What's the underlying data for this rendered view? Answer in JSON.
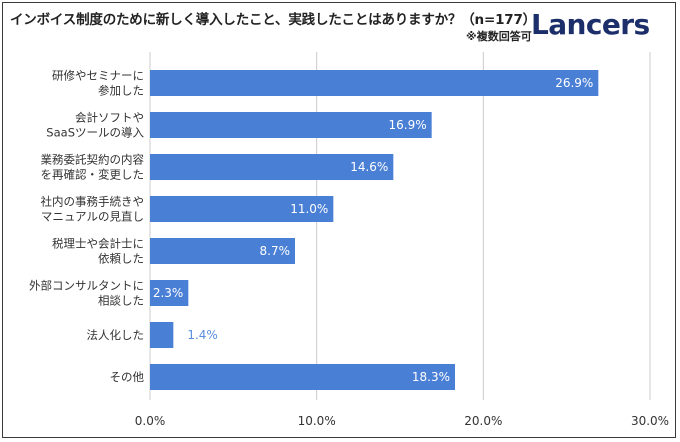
{
  "header": {
    "title": "インボイス制度のために新しく導入したこと、実践したことはありますか？（n=177）",
    "note": "※複数回答可",
    "logo": "Lancers"
  },
  "colors": {
    "bar": "#4a7fd6",
    "label_inside": "#ffffff",
    "label_outside": "#5a8fe0",
    "grid": "#cccccc",
    "text": "#333333"
  },
  "chart_data": {
    "type": "bar",
    "orientation": "horizontal",
    "title": "インボイス制度のために新しく導入したこと、実践したことはありますか？（n=177）",
    "categories": [
      [
        "研修やセミナーに",
        "参加した"
      ],
      [
        "会計ソフトや",
        "SaaSツールの導入"
      ],
      [
        "業務委託契約の内容",
        "を再確認・変更した"
      ],
      [
        "社内の事務手続きや",
        "マニュアルの見直し"
      ],
      [
        "税理士や会計士に",
        "依頼した"
      ],
      [
        "外部コンサルタントに",
        "相談した"
      ],
      [
        "法人化した"
      ],
      [
        "その他"
      ]
    ],
    "values": [
      26.9,
      16.9,
      14.6,
      11.0,
      8.7,
      2.3,
      1.4,
      18.3
    ],
    "value_labels": [
      "26.9%",
      "16.9%",
      "14.6%",
      "11.0%",
      "8.7%",
      "2.3%",
      "1.4%",
      "18.3%"
    ],
    "xlim": [
      0,
      30
    ],
    "xticks": [
      0,
      10,
      20,
      30
    ],
    "xtick_labels": [
      "0.0%",
      "10.0%",
      "20.0%",
      "30.0%"
    ],
    "grid": true
  }
}
